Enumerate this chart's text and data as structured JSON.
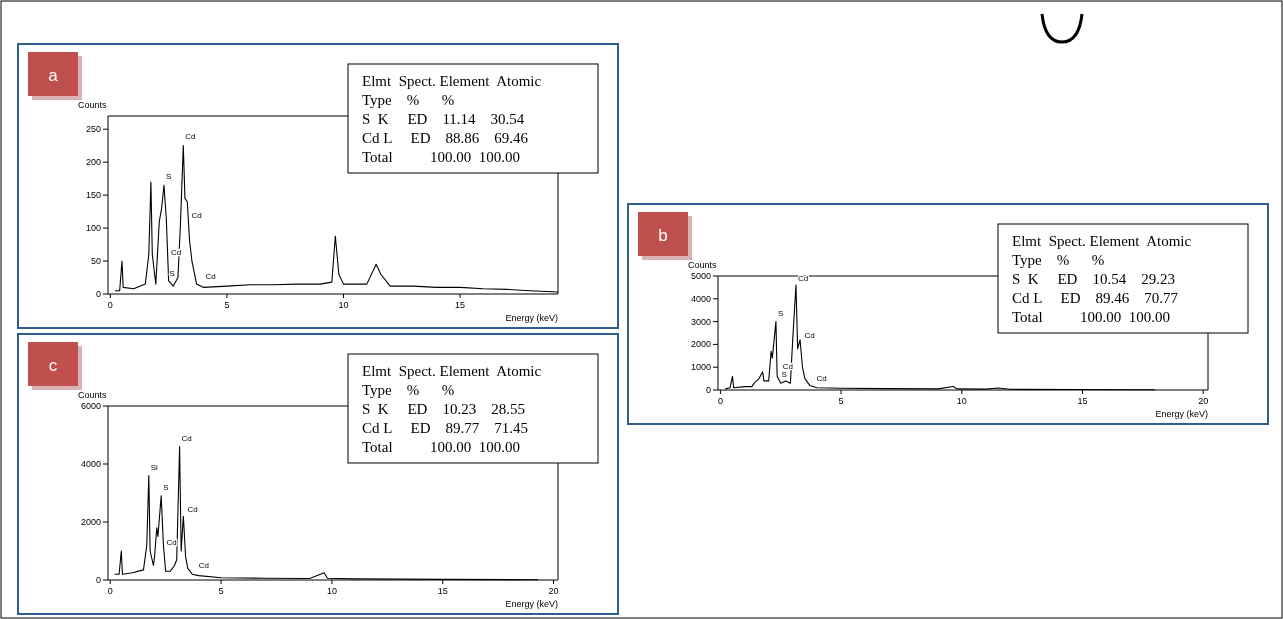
{
  "chart_data": [
    {
      "type": "line",
      "title": "a",
      "ylabel": "Counts",
      "xlabel": "Energy (keV)",
      "xlim": [
        -0.1,
        19.2
      ],
      "xticks": [
        0,
        5,
        10,
        15
      ],
      "ylim": [
        0,
        270
      ],
      "yticks": [
        0,
        50,
        100,
        150,
        200,
        250
      ],
      "grid": false,
      "marker": "none",
      "line_style": "solid",
      "series": [
        {
          "color": "#000000",
          "x": [
            0.2,
            0.4,
            0.5,
            0.55,
            1.0,
            1.5,
            1.65,
            1.74,
            1.8,
            1.95,
            2.1,
            2.2,
            2.3,
            2.4,
            2.5,
            2.7,
            2.9,
            3.0,
            3.13,
            3.2,
            3.3,
            3.4,
            3.5,
            3.7,
            4,
            5,
            6,
            7,
            8,
            9,
            9.5,
            9.65,
            9.8,
            10,
            11,
            11.4,
            11.6,
            12,
            13,
            14,
            15,
            16,
            17,
            18,
            19.2
          ],
          "values": [
            5,
            5,
            50,
            10,
            8,
            15,
            60,
            170,
            60,
            15,
            110,
            130,
            165,
            115,
            20,
            12,
            25,
            100,
            225,
            145,
            140,
            80,
            50,
            15,
            10,
            12,
            14,
            14,
            15,
            15,
            18,
            88,
            30,
            15,
            15,
            45,
            30,
            12,
            12,
            10,
            10,
            8,
            7,
            5,
            3
          ]
        }
      ],
      "annotations": [
        {
          "text": "S",
          "x": 2.3,
          "y": 170
        },
        {
          "text": "Cd",
          "x": 3.13,
          "y": 230
        },
        {
          "text": "Cd",
          "x": 3.4,
          "y": 110
        },
        {
          "text": "Cd",
          "x": 2.52,
          "y": 55
        },
        {
          "text": "S",
          "x": 2.45,
          "y": 22
        },
        {
          "text": "Cd",
          "x": 4.0,
          "y": 18
        },
        "Elmt  Spect. Element  Atomic",
        "Type    %      %",
        "S  K     ED    11.14    30.54",
        "Cd L     ED    88.86    69.46",
        "Total          100.00  100.00"
      ]
    },
    {
      "type": "line",
      "title": "b",
      "ylabel": "Counts",
      "xlabel": "Energy (keV)",
      "xlim": [
        -0.1,
        20.2
      ],
      "xticks": [
        0,
        5,
        10,
        15,
        20
      ],
      "ylim": [
        0,
        5000
      ],
      "yticks": [
        0,
        1000,
        2000,
        3000,
        4000,
        5000
      ],
      "grid": false,
      "marker": "none",
      "line_style": "solid",
      "series": [
        {
          "color": "#000000",
          "x": [
            0.2,
            0.4,
            0.5,
            0.55,
            1,
            1.3,
            1.4,
            1.6,
            1.75,
            1.8,
            2.0,
            2.1,
            2.15,
            2.3,
            2.35,
            2.5,
            2.7,
            2.9,
            3.0,
            3.13,
            3.2,
            3.3,
            3.4,
            3.5,
            3.7,
            4,
            5,
            7,
            9,
            9.65,
            9.8,
            11,
            11.5,
            12,
            15,
            17,
            18
          ],
          "values": [
            50,
            100,
            600,
            100,
            150,
            150,
            300,
            500,
            800,
            400,
            400,
            1700,
            1400,
            3000,
            600,
            300,
            400,
            300,
            2300,
            4600,
            1800,
            2200,
            1000,
            500,
            200,
            100,
            80,
            60,
            50,
            150,
            50,
            40,
            90,
            30,
            20,
            10,
            10
          ]
        }
      ],
      "annotations": [
        {
          "text": "S",
          "x": 2.3,
          "y": 3100
        },
        {
          "text": "Cd",
          "x": 3.13,
          "y": 4650
        },
        {
          "text": "Cd",
          "x": 3.4,
          "y": 2150
        },
        {
          "text": "Cd",
          "x": 2.5,
          "y": 800
        },
        {
          "text": "S",
          "x": 2.45,
          "y": 450
        },
        {
          "text": "Cd",
          "x": 3.9,
          "y": 250
        },
        "Elmt  Spect. Element  Atomic",
        "Type    %      %",
        "S  K     ED    10.54    29.23",
        "Cd L     ED    89.46    70.77",
        "Total          100.00  100.00"
      ]
    },
    {
      "type": "line",
      "title": "c",
      "ylabel": "Counts",
      "xlabel": "Energy (keV)",
      "xlim": [
        -0.1,
        20.2
      ],
      "xticks": [
        0,
        5,
        10,
        15,
        20
      ],
      "ylim": [
        0,
        6000
      ],
      "yticks": [
        0,
        2000,
        4000,
        6000
      ],
      "grid": false,
      "marker": "none",
      "line_style": "solid",
      "series": [
        {
          "color": "#000000",
          "x": [
            0.2,
            0.4,
            0.5,
            0.55,
            1,
            1.5,
            1.65,
            1.74,
            1.8,
            1.95,
            2.0,
            2.1,
            2.15,
            2.3,
            2.4,
            2.5,
            2.7,
            2.9,
            3.0,
            3.13,
            3.2,
            3.3,
            3.4,
            3.5,
            3.7,
            4,
            5,
            7,
            9,
            9.65,
            9.8,
            11,
            13,
            15,
            19.3
          ],
          "values": [
            200,
            200,
            1000,
            200,
            250,
            350,
            1200,
            3600,
            1000,
            500,
            800,
            1800,
            1500,
            2900,
            1200,
            300,
            300,
            500,
            700,
            4600,
            1000,
            2200,
            800,
            400,
            200,
            150,
            80,
            60,
            50,
            250,
            60,
            40,
            30,
            20,
            10
          ]
        }
      ],
      "annotations": [
        {
          "text": "Si",
          "x": 1.74,
          "y": 3700
        },
        {
          "text": "S",
          "x": 2.3,
          "y": 3000
        },
        {
          "text": "Cd",
          "x": 3.13,
          "y": 4700
        },
        {
          "text": "Cd",
          "x": 3.4,
          "y": 2250
        },
        {
          "text": "Cd",
          "x": 2.45,
          "y": 1100
        },
        {
          "text": "Cd",
          "x": 3.9,
          "y": 300
        },
        "Elmt  Spect. Element  Atomic",
        "Type    %      %",
        "S  K     ED    10.23    28.55",
        "Cd L     ED    89.77    71.45",
        "Total          100.00  100.00"
      ]
    }
  ]
}
